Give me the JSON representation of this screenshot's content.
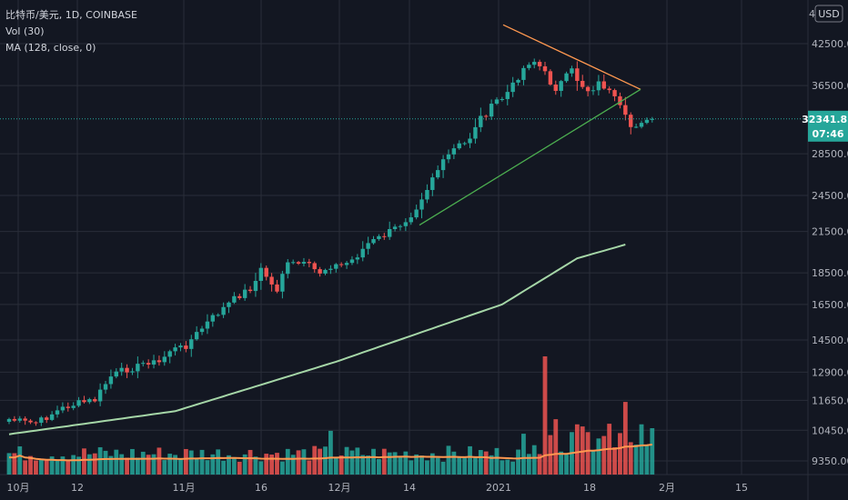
{
  "header": {
    "symbol_line": "比特币/美元, 1D, COINBASE",
    "vol_label": "Vol (30)",
    "ma_label": "MA (128, close, 0)"
  },
  "currency_button": "USD",
  "top_price_fragment": "4",
  "price_tag": {
    "price": "32341.83",
    "countdown": "07:46"
  },
  "colors": {
    "background": "#131722",
    "up": "#26a69a",
    "down": "#ef5350",
    "ma": "#a5d6a7",
    "vol_ma": "#ff9850",
    "resistance_line": "#ff9850",
    "support_line": "#4caf50",
    "price_tag": "#26a69a"
  },
  "chart_data": {
    "type": "candlestick",
    "title": "比特币/美元, 1D, COINBASE",
    "y_axis_scale": "log",
    "y_ticks": [
      9350,
      10450,
      11650,
      12900,
      14500,
      16500,
      18500,
      21500,
      24500,
      28500,
      36500,
      42500
    ],
    "x_ticks": [
      "10月",
      "12",
      "11月",
      "16",
      "12月",
      "14",
      "2021",
      "18",
      "2月",
      "15"
    ],
    "current_price": 32341.83,
    "series": [
      {
        "name": "MA (128, close, 0)",
        "type": "line",
        "points": [
          [
            "10月 1",
            10300
          ],
          [
            "11月 1",
            11200
          ],
          [
            "12月 1",
            13400
          ],
          [
            "2021 1月 1",
            16500
          ],
          [
            "1月 15",
            19500
          ],
          [
            "1月 24",
            20500
          ]
        ]
      },
      {
        "name": "Vol (30)",
        "type": "bar"
      }
    ],
    "trendlines": [
      {
        "type": "resistance",
        "from": [
          "2021 1月 1",
          45500
        ],
        "to": [
          "1月 29",
          36000
        ]
      },
      {
        "type": "support",
        "from": [
          "12月 13",
          22000
        ],
        "to": [
          "1月 29",
          36000
        ]
      }
    ]
  }
}
